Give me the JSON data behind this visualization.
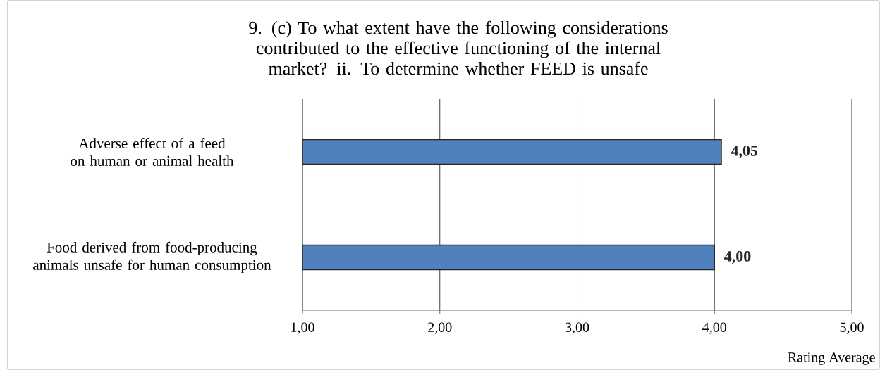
{
  "chart_data": {
    "type": "bar",
    "orientation": "horizontal",
    "title": "9. (c) To what extent have the following considerations contributed to the effective functioning of the internal market? ii. To determine whether FEED is unsafe",
    "xlabel": "Rating Average",
    "categories": [
      "Adverse effect of a feed on human or animal health",
      "Food derived from food-producing animals unsafe for human consumption"
    ],
    "values": [
      4.05,
      4.0
    ],
    "value_labels": [
      "4,05",
      "4,00"
    ],
    "color": "#4f81bd",
    "xlim": [
      1,
      5
    ],
    "xticks": [
      {
        "value": 1,
        "label": "1,00"
      },
      {
        "value": 2,
        "label": "2,00"
      },
      {
        "value": 3,
        "label": "3,00"
      },
      {
        "value": 4,
        "label": "4,00"
      },
      {
        "value": 5,
        "label": "5,00"
      }
    ],
    "grid": "x"
  }
}
